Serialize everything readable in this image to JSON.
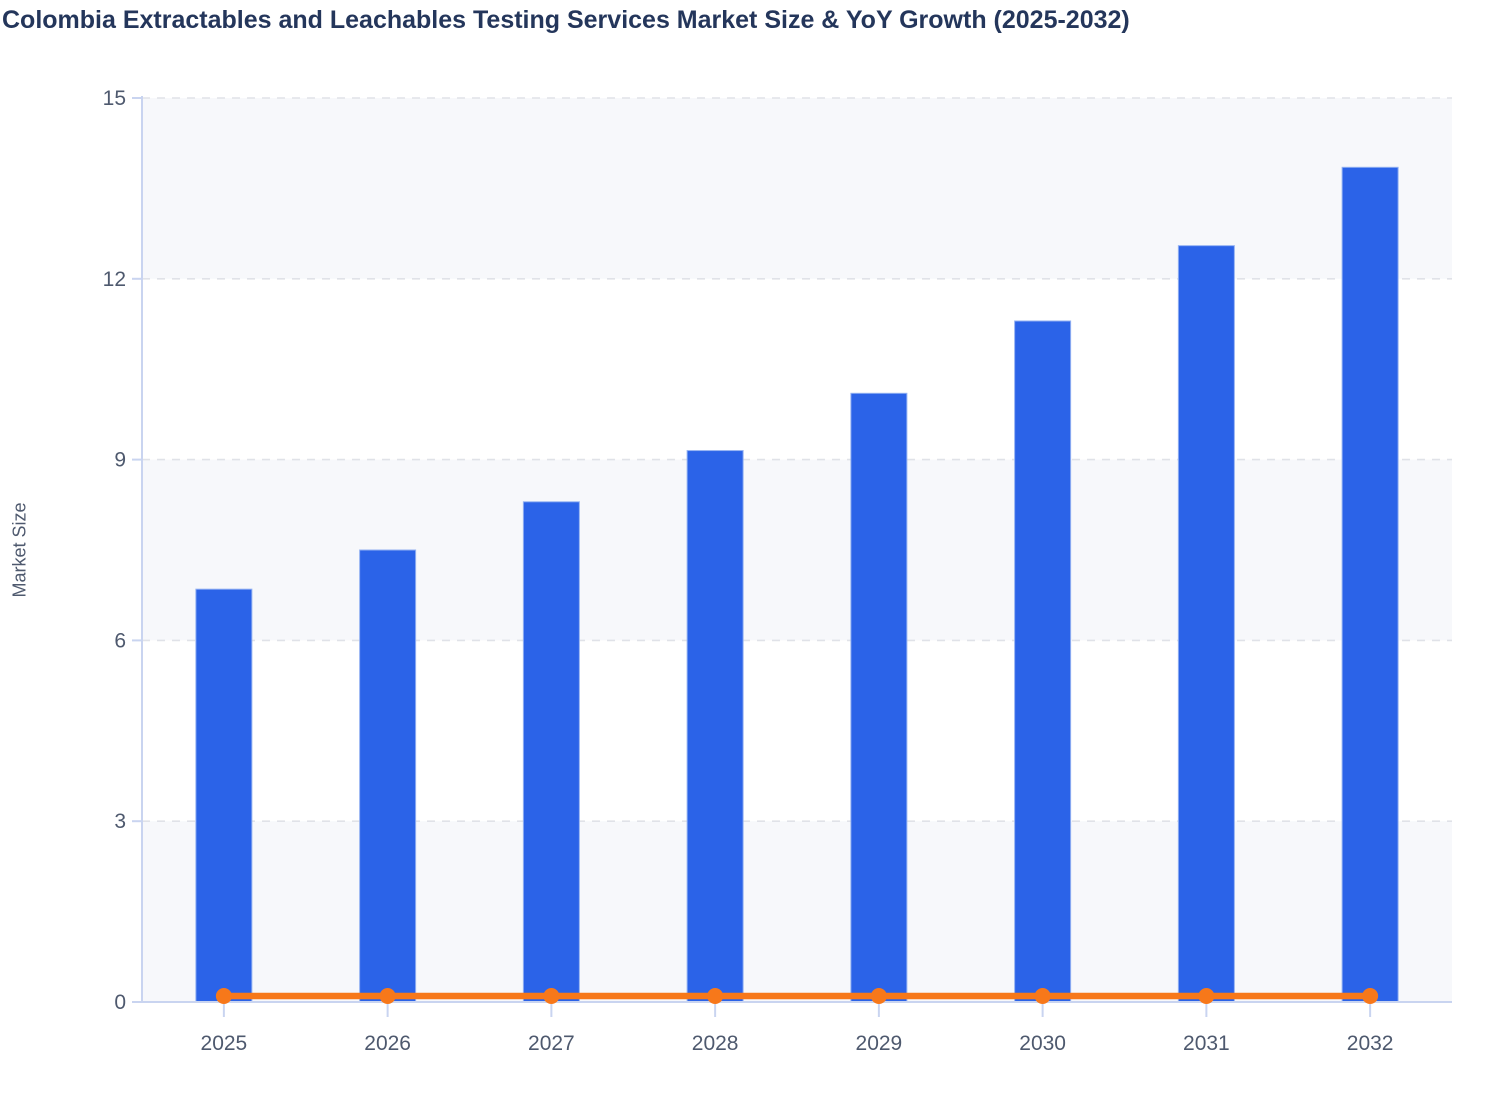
{
  "title": "Colombia Extractables and Leachables Testing Services Market Size & YoY Growth (2025-2032)",
  "chart_data": {
    "type": "bar",
    "title": "Colombia Extractables and Leachables Testing Services Market Size & YoY Growth (2025-2032)",
    "categories": [
      "2025",
      "2026",
      "2027",
      "2028",
      "2029",
      "2030",
      "2031",
      "2032"
    ],
    "series": [
      {
        "name": "Market Size",
        "type": "bar",
        "values": [
          6.85,
          7.5,
          8.3,
          9.15,
          10.1,
          11.3,
          12.55,
          13.85
        ],
        "color": "#2B63E8"
      },
      {
        "name": "YoY Growth",
        "type": "line",
        "values": [
          0.1,
          0.1,
          0.1,
          0.1,
          0.1,
          0.1,
          0.1,
          0.1
        ],
        "color": "#F7781A"
      }
    ],
    "xlabel": "",
    "ylabel": "Market Size",
    "ylim": [
      0,
      15
    ],
    "yticks": [
      0,
      3,
      6,
      9,
      12,
      15
    ],
    "grid": "horizontal-dashed",
    "legend_position": "none",
    "colors": {
      "band_fill": "#F7F8FB",
      "axis_line": "#C9D4F0",
      "grid_line": "#E0E2E8",
      "tick_label": "#4E596E",
      "title_text": "#24365B",
      "bar_border": "#93B1F2"
    }
  }
}
